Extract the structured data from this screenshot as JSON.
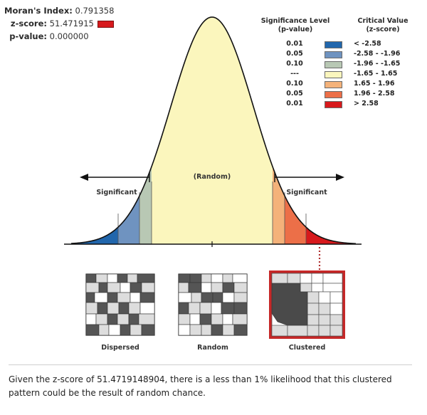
{
  "stats": {
    "morans_label": "Moran's Index:",
    "morans_value": "0.791358",
    "z_label": "z-score:",
    "z_value": "51.471915",
    "p_label": "p-value:",
    "p_value": "0.000000"
  },
  "legend": {
    "sig_header_line1": "Significance Level",
    "sig_header_line2": "(p-value)",
    "crit_header_line1": "Critical Value",
    "crit_header_line2": "(z-score)",
    "rows": [
      {
        "p": "0.01",
        "z": "< -2.58",
        "color": "#2166ac"
      },
      {
        "p": "0.05",
        "z": "-2.58 - -1.96",
        "color": "#6f93c0"
      },
      {
        "p": "0.10",
        "z": "-1.96 - -1.65",
        "color": "#b8c8b4"
      },
      {
        "p": "---",
        "z": "-1.65 - 1.65",
        "color": "#fbf6bd"
      },
      {
        "p": "0.10",
        "z": "1.65 - 1.96",
        "color": "#f4b27a"
      },
      {
        "p": "0.05",
        "z": "1.96 - 2.58",
        "color": "#ec6f48"
      },
      {
        "p": "0.01",
        "z": "> 2.58",
        "color": "#d7191c"
      }
    ]
  },
  "curve": {
    "random_label": "(Random)",
    "significant_left": "Significant",
    "significant_right": "Significant"
  },
  "maps": {
    "dispersed": "Dispersed",
    "random": "Random",
    "clustered": "Clustered",
    "highlight_color": "#c62828"
  },
  "summary": "Given the z-score of 51.4719148904, there is a less than 1% likelihood that this clustered pattern could be the result of random chance."
}
